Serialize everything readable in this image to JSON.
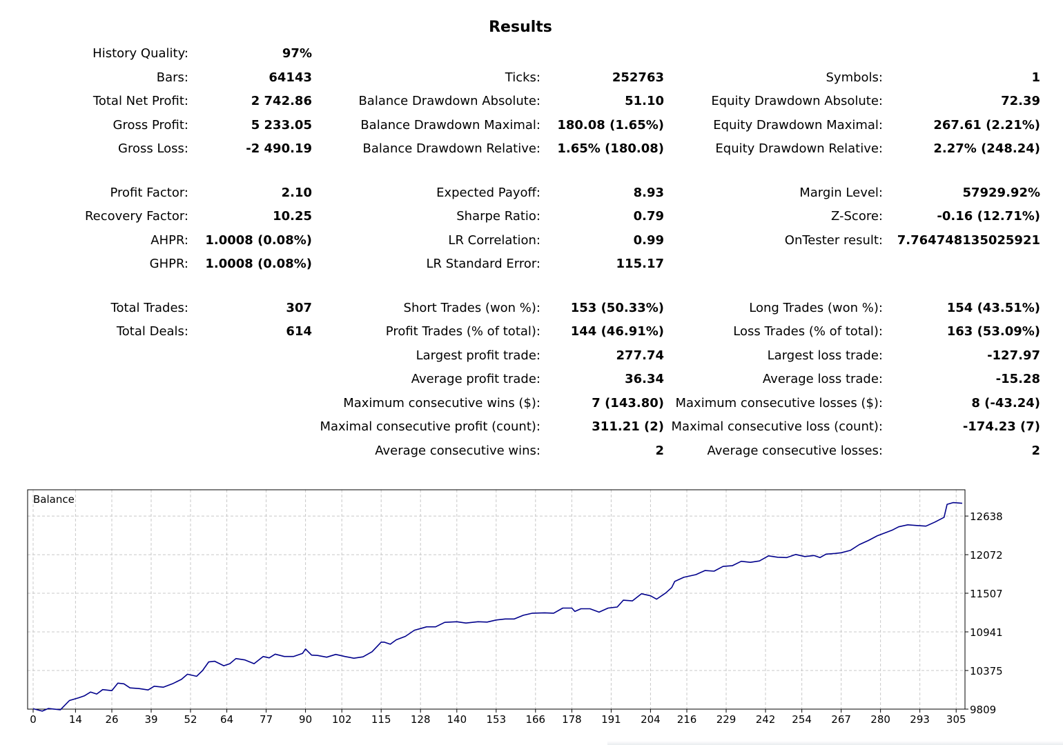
{
  "title": "Results",
  "stats": {
    "col1": [
      {
        "label": "History Quality:",
        "value": "97%"
      },
      {
        "label": "Bars:",
        "value": "64143"
      },
      {
        "label": "Total Net Profit:",
        "value": "2 742.86"
      },
      {
        "label": "Gross Profit:",
        "value": "5 233.05"
      },
      {
        "label": "Gross Loss:",
        "value": "-2 490.19"
      },
      {
        "label": "Profit Factor:",
        "value": "2.10"
      },
      {
        "label": "Recovery Factor:",
        "value": "10.25"
      },
      {
        "label": "AHPR:",
        "value": "1.0008 (0.08%)"
      },
      {
        "label": "GHPR:",
        "value": "1.0008 (0.08%)"
      },
      {
        "label": "Total Trades:",
        "value": "307"
      },
      {
        "label": "Total Deals:",
        "value": "614"
      }
    ],
    "col2": [
      {
        "label": "Ticks:",
        "value": "252763"
      },
      {
        "label": "Balance Drawdown Absolute:",
        "value": "51.10"
      },
      {
        "label": "Balance Drawdown Maximal:",
        "value": "180.08 (1.65%)"
      },
      {
        "label": "Balance Drawdown Relative:",
        "value": "1.65% (180.08)"
      },
      {
        "label": "Expected Payoff:",
        "value": "8.93"
      },
      {
        "label": "Sharpe Ratio:",
        "value": "0.79"
      },
      {
        "label": "LR Correlation:",
        "value": "0.99"
      },
      {
        "label": "LR Standard Error:",
        "value": "115.17"
      },
      {
        "label": "Short Trades (won %):",
        "value": "153 (50.33%)"
      },
      {
        "label": "Profit Trades (% of total):",
        "value": "144 (46.91%)"
      },
      {
        "label": "Largest profit trade:",
        "value": "277.74"
      },
      {
        "label": "Average profit trade:",
        "value": "36.34"
      },
      {
        "label": "Maximum consecutive wins ($):",
        "value": "7 (143.80)"
      },
      {
        "label": "Maximal consecutive profit (count):",
        "value": "311.21 (2)"
      },
      {
        "label": "Average consecutive wins:",
        "value": "2"
      }
    ],
    "col3": [
      {
        "label": "Symbols:",
        "value": "1"
      },
      {
        "label": "Equity Drawdown Absolute:",
        "value": "72.39"
      },
      {
        "label": "Equity Drawdown Maximal:",
        "value": "267.61 (2.21%)"
      },
      {
        "label": "Equity Drawdown Relative:",
        "value": "2.27% (248.24)"
      },
      {
        "label": "Margin Level:",
        "value": "57929.92%"
      },
      {
        "label": "Z-Score:",
        "value": "-0.16 (12.71%)"
      },
      {
        "label": "OnTester result:",
        "value": "7.764748135025921"
      },
      {
        "label": "Long Trades (won %):",
        "value": "154 (43.51%)"
      },
      {
        "label": "Loss Trades (% of total):",
        "value": "163 (53.09%)"
      },
      {
        "label": "Largest loss trade:",
        "value": "-127.97"
      },
      {
        "label": "Average loss trade:",
        "value": "-15.28"
      },
      {
        "label": "Maximum consecutive losses ($):",
        "value": "8 (-43.24)"
      },
      {
        "label": "Maximal consecutive loss (count):",
        "value": "-174.23 (7)"
      },
      {
        "label": "Average consecutive losses:",
        "value": "2"
      }
    ]
  },
  "chart_data": {
    "type": "line",
    "title": "Balance",
    "xlabel": "",
    "ylabel": "",
    "grid": true,
    "color": "#00008b",
    "xlim": [
      0,
      307
    ],
    "ylim": [
      9809,
      12920
    ],
    "x_ticks": [
      "0",
      "14",
      "26",
      "39",
      "52",
      "64",
      "77",
      "90",
      "102",
      "115",
      "128",
      "140",
      "153",
      "166",
      "178",
      "191",
      "204",
      "216",
      "229",
      "242",
      "254",
      "267",
      "280",
      "293",
      "305"
    ],
    "y_ticks": [
      "9809",
      "10375",
      "10941",
      "11507",
      "12072",
      "12638"
    ],
    "series": [
      {
        "name": "Balance",
        "x": [
          0,
          3,
          5,
          9,
          12,
          15,
          17,
          19,
          21,
          23,
          26,
          28,
          30,
          32,
          35,
          38,
          40,
          43,
          46,
          49,
          51,
          54,
          56,
          58,
          60,
          63,
          65,
          67,
          70,
          73,
          76,
          78,
          80,
          83,
          86,
          89,
          90,
          92,
          94,
          97,
          100,
          103,
          106,
          109,
          112,
          115,
          116,
          118,
          120,
          123,
          126,
          128,
          130,
          133,
          136,
          140,
          143,
          147,
          150,
          153,
          156,
          159,
          162,
          165,
          169,
          172,
          175,
          178,
          179,
          181,
          184,
          187,
          190,
          193,
          195,
          198,
          201,
          204,
          206,
          209,
          211,
          212,
          215,
          219,
          222,
          225,
          228,
          231,
          234,
          237,
          240,
          243,
          246,
          249,
          252,
          255,
          258,
          260,
          262,
          265,
          267,
          270,
          273,
          276,
          279,
          282,
          284,
          286,
          289,
          292,
          295,
          298,
          301,
          302,
          304,
          307
        ],
        "values": [
          9815,
          9780,
          9818,
          9800,
          9935,
          9975,
          10005,
          10060,
          10030,
          10095,
          10080,
          10190,
          10180,
          10120,
          10110,
          10090,
          10145,
          10130,
          10180,
          10245,
          10320,
          10290,
          10375,
          10500,
          10510,
          10445,
          10475,
          10550,
          10530,
          10475,
          10580,
          10560,
          10615,
          10580,
          10580,
          10625,
          10690,
          10600,
          10595,
          10570,
          10610,
          10580,
          10555,
          10575,
          10650,
          10790,
          10790,
          10760,
          10825,
          10875,
          10965,
          10990,
          11015,
          11015,
          11080,
          11090,
          11070,
          11090,
          11085,
          11115,
          11130,
          11130,
          11185,
          11215,
          11220,
          11215,
          11290,
          11290,
          11240,
          11280,
          11280,
          11230,
          11290,
          11305,
          11405,
          11395,
          11500,
          11470,
          11420,
          11510,
          11590,
          11680,
          11740,
          11780,
          11840,
          11830,
          11900,
          11910,
          11975,
          11960,
          11980,
          12055,
          12035,
          12030,
          12075,
          12045,
          12060,
          12030,
          12080,
          12090,
          12100,
          12135,
          12220,
          12280,
          12350,
          12400,
          12435,
          12480,
          12510,
          12500,
          12490,
          12550,
          12620,
          12810,
          12835,
          12825
        ]
      }
    ]
  }
}
